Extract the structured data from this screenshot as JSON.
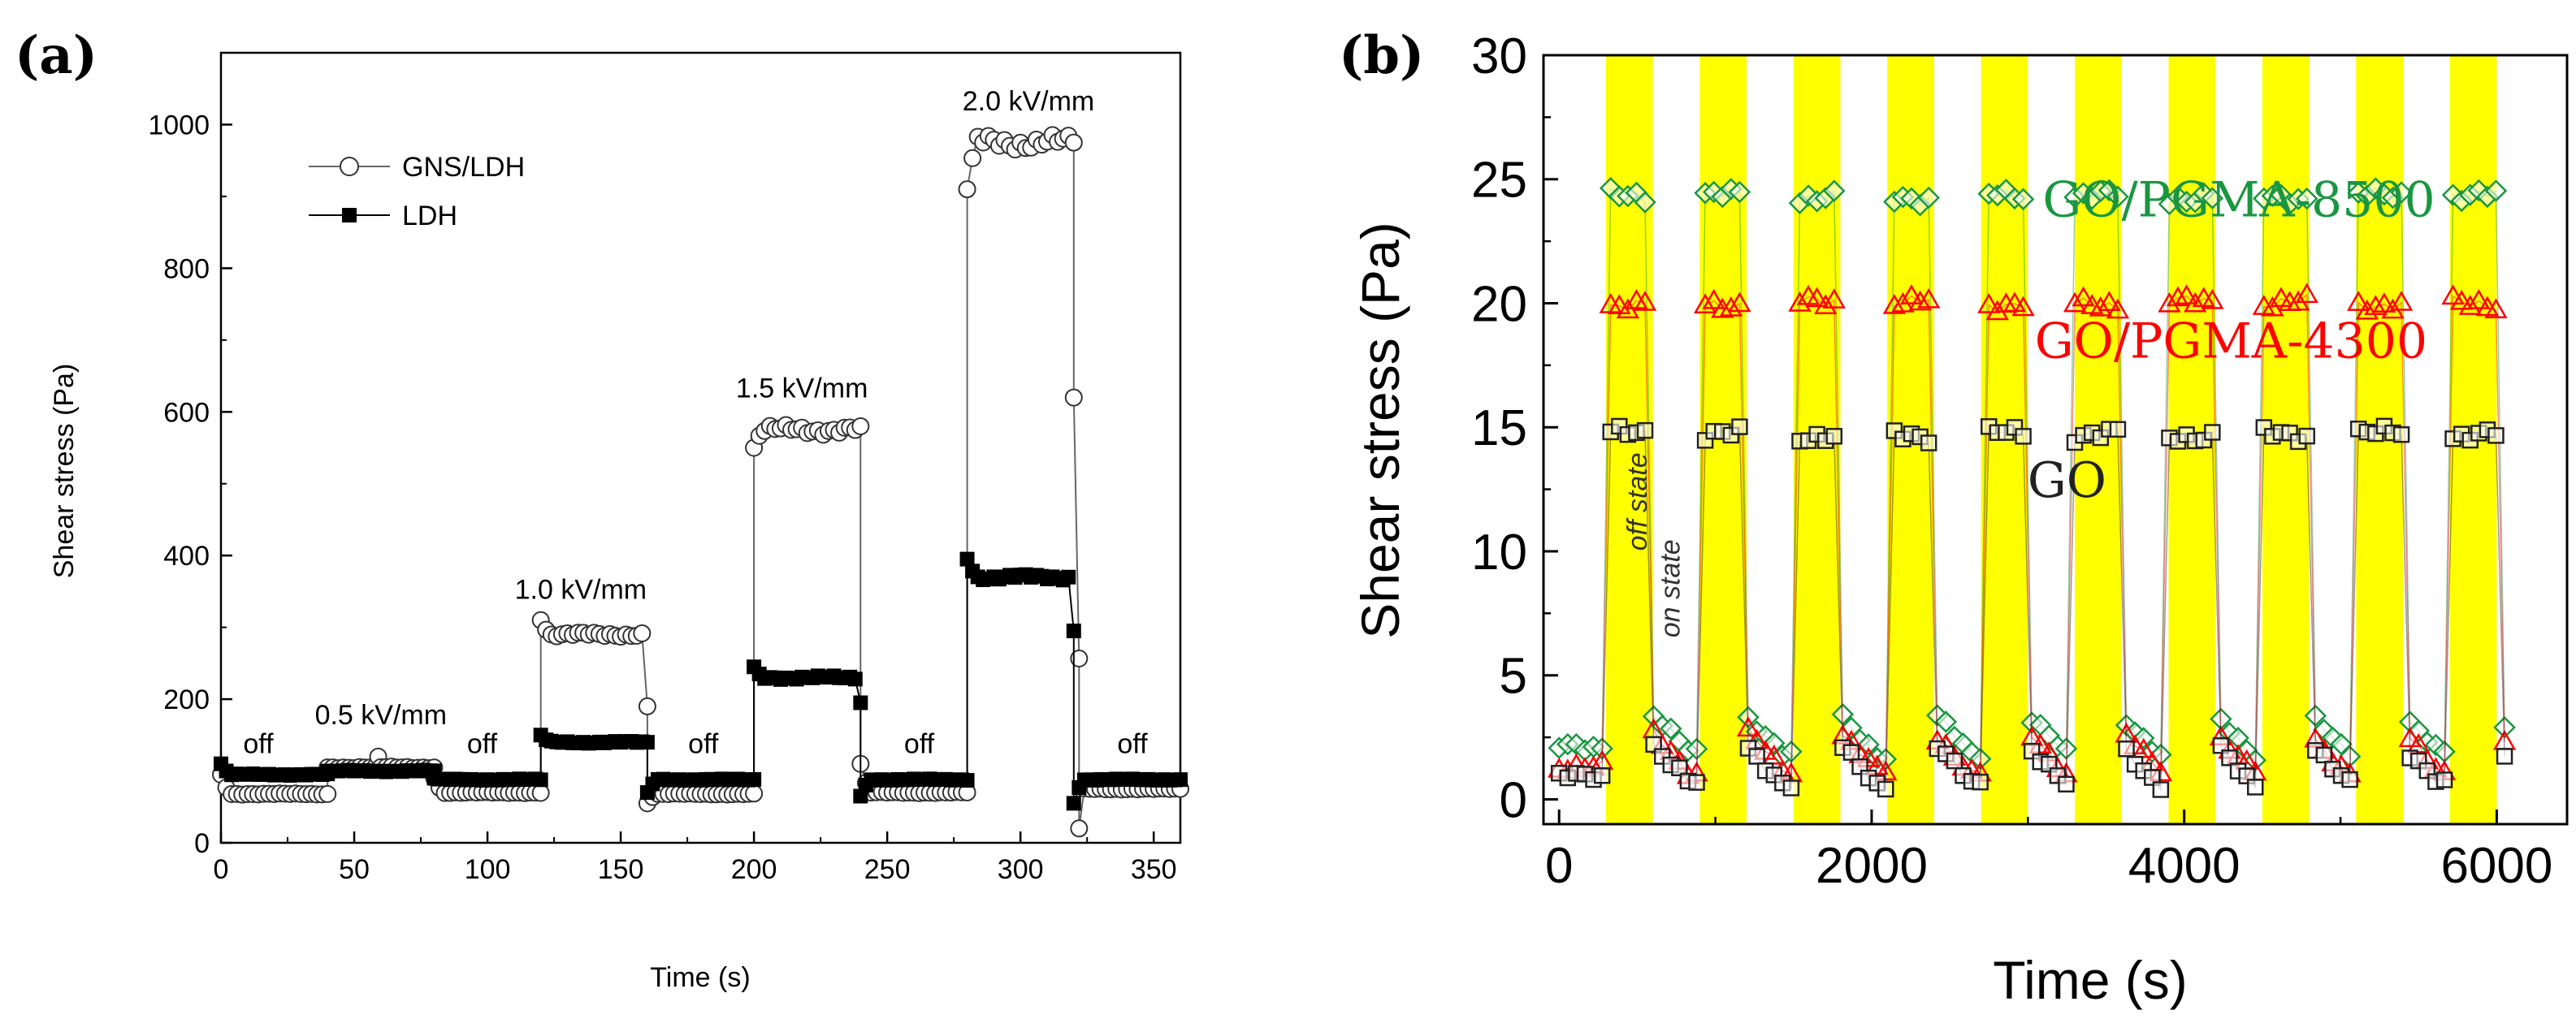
{
  "chart_data": [
    {
      "panel": "(a)",
      "type": "line",
      "xlabel": "Time (s)",
      "ylabel": "Shear stress (Pa)",
      "xlim": [
        0,
        360
      ],
      "ylim": [
        0,
        1100
      ],
      "xticks": [
        0,
        50,
        100,
        150,
        200,
        250,
        300,
        350
      ],
      "yticks": [
        0,
        200,
        400,
        600,
        800,
        1000
      ],
      "legend_position": "top-left",
      "grid": false,
      "series": [
        {
          "name": "GNS/LDH",
          "marker": "open-circle",
          "color": "#666666",
          "segments": [
            {
              "x0": 0,
              "x1": 40,
              "start": 95,
              "value": 68
            },
            {
              "x0": 40,
              "x1": 80,
              "start": 105,
              "value": 105
            },
            {
              "x0": 80,
              "x1": 120,
              "start": 90,
              "value": 70
            },
            {
              "x0": 120,
              "x1": 160,
              "start": 310,
              "value": 290,
              "end": 190
            },
            {
              "x0": 160,
              "x1": 200,
              "start": 55,
              "value": 68
            },
            {
              "x0": 200,
              "x1": 240,
              "start": 550,
              "value": 575,
              "end": 580
            },
            {
              "x0": 240,
              "x1": 280,
              "start": 110,
              "value": 70
            },
            {
              "x0": 280,
              "x1": 320,
              "start": 910,
              "value": 975,
              "end": 975
            },
            {
              "x0": 320,
              "x1": 360,
              "start": 620,
              "value": 75,
              "end": 75
            }
          ],
          "spikes": [
            {
              "x": 59,
              "y": 120
            },
            {
              "x": 322,
              "y": 20
            }
          ]
        },
        {
          "name": "LDH",
          "marker": "filled-square",
          "color": "#000000",
          "segments": [
            {
              "x0": 0,
              "x1": 40,
              "start": 110,
              "value": 95
            },
            {
              "x0": 40,
              "x1": 80,
              "start": 100,
              "value": 100
            },
            {
              "x0": 80,
              "x1": 120,
              "start": 90,
              "value": 88
            },
            {
              "x0": 120,
              "x1": 160,
              "start": 150,
              "value": 140,
              "end": 140
            },
            {
              "x0": 160,
              "x1": 200,
              "start": 70,
              "value": 88
            },
            {
              "x0": 200,
              "x1": 240,
              "start": 245,
              "value": 230,
              "end": 195
            },
            {
              "x0": 240,
              "x1": 280,
              "start": 65,
              "value": 88
            },
            {
              "x0": 280,
              "x1": 320,
              "start": 395,
              "value": 370,
              "end": 295
            },
            {
              "x0": 320,
              "x1": 360,
              "start": 55,
              "value": 88,
              "end": 88
            }
          ]
        }
      ],
      "annotations": [
        {
          "text": "off",
          "x": 14,
          "y": 125
        },
        {
          "text": "0.5 kV/mm",
          "x": 60,
          "y": 165
        },
        {
          "text": "off",
          "x": 98,
          "y": 125
        },
        {
          "text": "1.0 kV/mm",
          "x": 135,
          "y": 340
        },
        {
          "text": "off",
          "x": 181,
          "y": 125
        },
        {
          "text": "1.5 kV/mm",
          "x": 218,
          "y": 620
        },
        {
          "text": "off",
          "x": 262,
          "y": 125
        },
        {
          "text": "2.0 kV/mm",
          "x": 303,
          "y": 1020
        },
        {
          "text": "off",
          "x": 342,
          "y": 125
        }
      ]
    },
    {
      "panel": "(b)",
      "type": "scatter",
      "xlabel": "Time (s)",
      "ylabel": "Shear stress (Pa)",
      "xlim": [
        -100,
        6450
      ],
      "ylim": [
        -1,
        30
      ],
      "xticks": [
        0,
        2000,
        4000,
        6000
      ],
      "yticks": [
        0,
        5,
        10,
        15,
        20,
        25,
        30
      ],
      "grid": false,
      "field_on_intervals": [
        [
          300,
          600
        ],
        [
          900,
          1200
        ],
        [
          1500,
          1800
        ],
        [
          2100,
          2400
        ],
        [
          2700,
          3000
        ],
        [
          3300,
          3600
        ],
        [
          3900,
          4200
        ],
        [
          4500,
          4800
        ],
        [
          5100,
          5400
        ],
        [
          5700,
          6000
        ]
      ],
      "band_color": "#ffff00",
      "series": [
        {
          "name": "GO/PGMA-8500",
          "marker": "open-diamond",
          "color": "#1a9641",
          "on_value": 24.3,
          "off_value": 1.8,
          "label_x": 4350,
          "label_y": 23.5
        },
        {
          "name": "GO/PGMA-4300",
          "marker": "open-triangle",
          "color": "#ff0000",
          "on_value": 20.0,
          "off_value": 1.1,
          "label_x": 4300,
          "label_y": 17.8
        },
        {
          "name": "GO",
          "marker": "open-square",
          "color": "#222222",
          "on_value": 14.7,
          "off_value": 0.6,
          "label_x": 3250,
          "label_y": 12.2
        }
      ],
      "annotations": [
        {
          "text": "off state",
          "x": 560,
          "y": 12
        },
        {
          "text": "on state",
          "x": 770,
          "y": 8.5
        }
      ]
    }
  ]
}
